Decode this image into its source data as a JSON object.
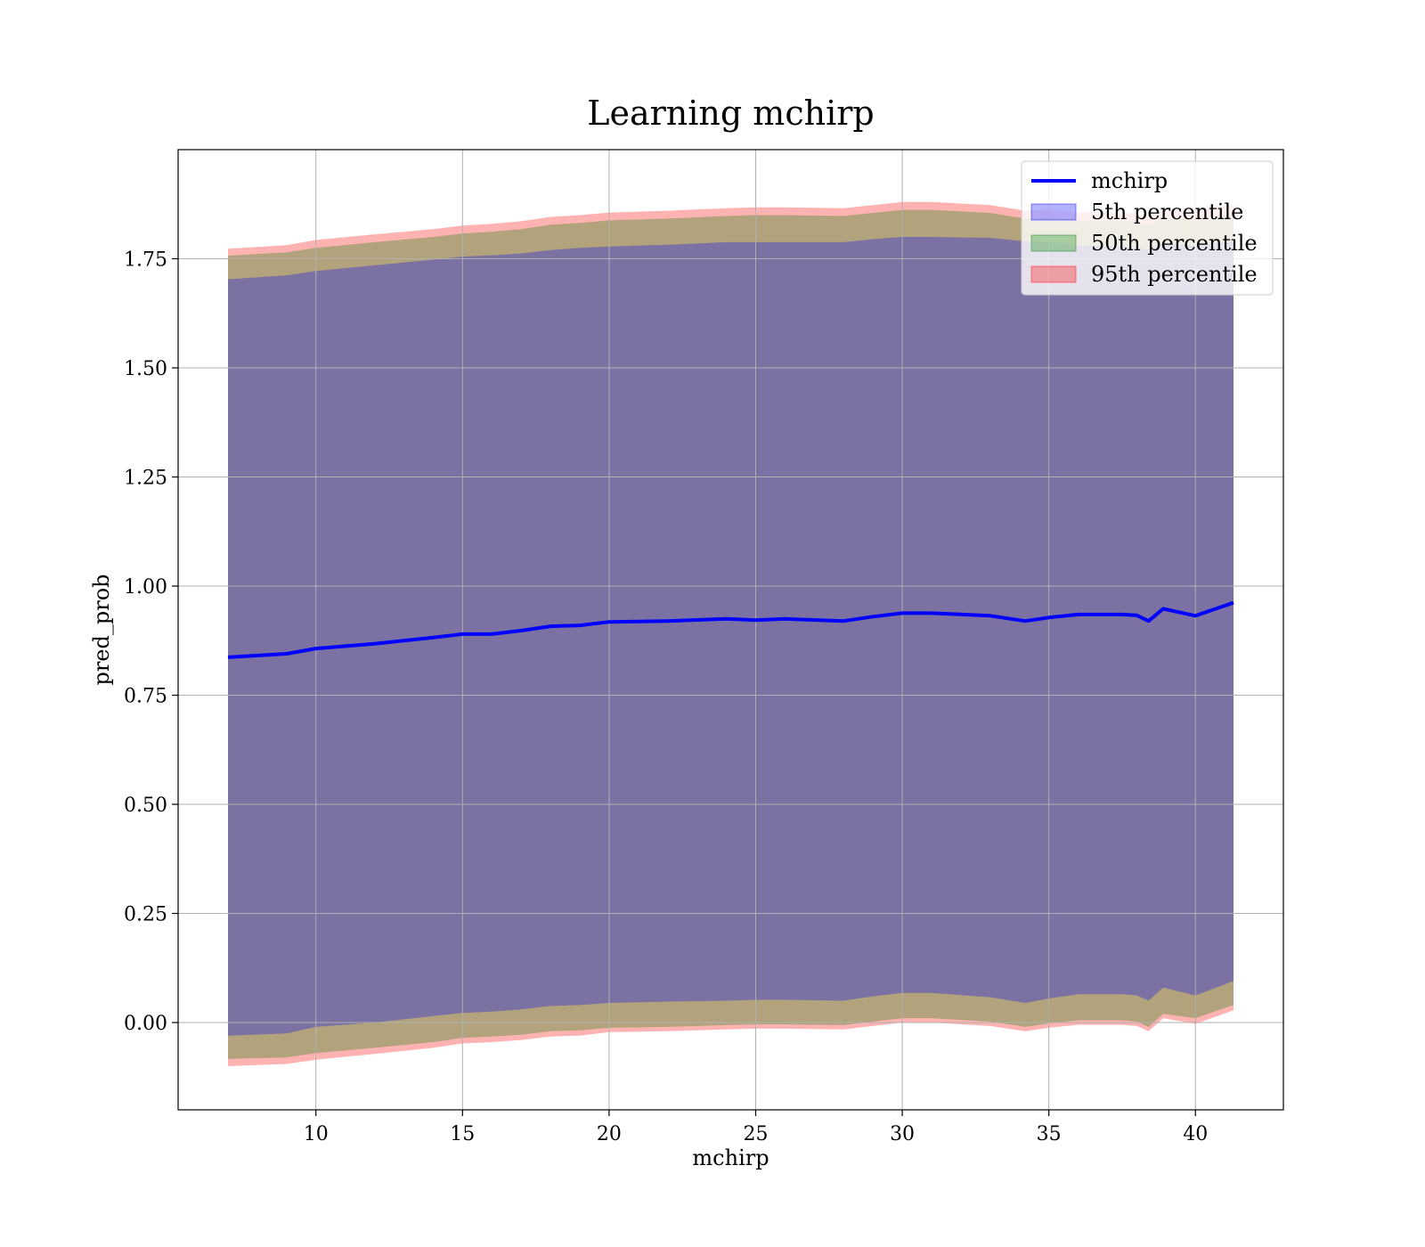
{
  "chart_data": {
    "type": "area",
    "title": "Learning mchirp",
    "xlabel": "mchirp",
    "ylabel": "pred_prob",
    "xlim": [
      5.3,
      43.0
    ],
    "ylim": [
      -0.2,
      2.0
    ],
    "xticks": [
      10,
      15,
      20,
      25,
      30,
      35,
      40
    ],
    "xtick_labels": [
      "10",
      "15",
      "20",
      "25",
      "30",
      "35",
      "40"
    ],
    "yticks": [
      0.0,
      0.25,
      0.5,
      0.75,
      1.0,
      1.25,
      1.5,
      1.75
    ],
    "ytick_labels": [
      "0.00",
      "0.25",
      "0.50",
      "0.75",
      "1.00",
      "1.25",
      "1.50",
      "1.75"
    ],
    "grid": true,
    "legend_position": "top-right",
    "x": [
      7.0,
      9.0,
      10.0,
      12.0,
      14.0,
      15.0,
      16.0,
      17.0,
      18.0,
      19.0,
      20.0,
      22.0,
      24.0,
      25.0,
      26.0,
      28.0,
      29.0,
      30.0,
      31.0,
      33.0,
      34.2,
      35.0,
      36.0,
      37.5,
      38.0,
      38.4,
      38.9,
      40.0,
      41.3
    ],
    "series": [
      {
        "name": "mchirp",
        "type": "line",
        "color": "#0000ff",
        "values": [
          0.837,
          0.845,
          0.857,
          0.868,
          0.882,
          0.89,
          0.89,
          0.898,
          0.908,
          0.91,
          0.918,
          0.92,
          0.925,
          0.922,
          0.925,
          0.92,
          0.93,
          0.938,
          0.938,
          0.932,
          0.92,
          0.928,
          0.935,
          0.935,
          0.933,
          0.92,
          0.948,
          0.932,
          0.962
        ]
      },
      {
        "name": "5th percentile",
        "type": "band",
        "color": "#0000ff",
        "lower": [
          -0.03,
          -0.025,
          -0.01,
          0.0,
          0.015,
          0.022,
          0.025,
          0.03,
          0.038,
          0.04,
          0.045,
          0.048,
          0.05,
          0.052,
          0.052,
          0.05,
          0.06,
          0.068,
          0.068,
          0.058,
          0.045,
          0.055,
          0.065,
          0.065,
          0.062,
          0.05,
          0.08,
          0.062,
          0.095
        ],
        "upper": [
          1.703,
          1.712,
          1.722,
          1.735,
          1.748,
          1.755,
          1.758,
          1.762,
          1.77,
          1.775,
          1.778,
          1.782,
          1.788,
          1.788,
          1.788,
          1.788,
          1.795,
          1.8,
          1.8,
          1.798,
          1.79,
          1.788,
          1.78,
          1.778,
          1.775,
          1.77,
          1.785,
          1.78,
          1.79
        ]
      },
      {
        "name": "50th percentile",
        "type": "band",
        "color": "#008000",
        "lower": [
          -0.083,
          -0.08,
          -0.07,
          -0.058,
          -0.045,
          -0.035,
          -0.032,
          -0.028,
          -0.02,
          -0.018,
          -0.012,
          -0.01,
          -0.006,
          -0.004,
          -0.004,
          -0.006,
          0.002,
          0.01,
          0.01,
          0.002,
          -0.01,
          -0.002,
          0.005,
          0.005,
          0.002,
          -0.01,
          0.02,
          0.01,
          0.04
        ]
      },
      {
        "name": "95th percentile",
        "type": "band",
        "color": "#ff0000",
        "lower": [
          -0.1,
          -0.095,
          -0.085,
          -0.072,
          -0.058,
          -0.048,
          -0.045,
          -0.04,
          -0.032,
          -0.03,
          -0.022,
          -0.02,
          -0.016,
          -0.014,
          -0.014,
          -0.016,
          -0.008,
          0.0,
          0.0,
          -0.008,
          -0.02,
          -0.012,
          -0.005,
          -0.005,
          -0.008,
          -0.02,
          0.01,
          -0.003,
          0.028
        ]
      }
    ],
    "band_upper": {
      "50th percentile": [
        1.757,
        1.765,
        1.775,
        1.788,
        1.8,
        1.808,
        1.812,
        1.818,
        1.828,
        1.832,
        1.838,
        1.842,
        1.848,
        1.85,
        1.85,
        1.848,
        1.855,
        1.862,
        1.862,
        1.855,
        1.842,
        1.845,
        1.838,
        1.838,
        1.835,
        1.828,
        1.845,
        1.84,
        1.85
      ],
      "95th percentile": [
        1.773,
        1.781,
        1.793,
        1.806,
        1.818,
        1.826,
        1.83,
        1.836,
        1.846,
        1.85,
        1.856,
        1.86,
        1.866,
        1.868,
        1.868,
        1.866,
        1.873,
        1.88,
        1.88,
        1.873,
        1.86,
        1.863,
        1.856,
        1.856,
        1.853,
        1.846,
        1.866,
        1.86,
        1.875
      ]
    }
  }
}
